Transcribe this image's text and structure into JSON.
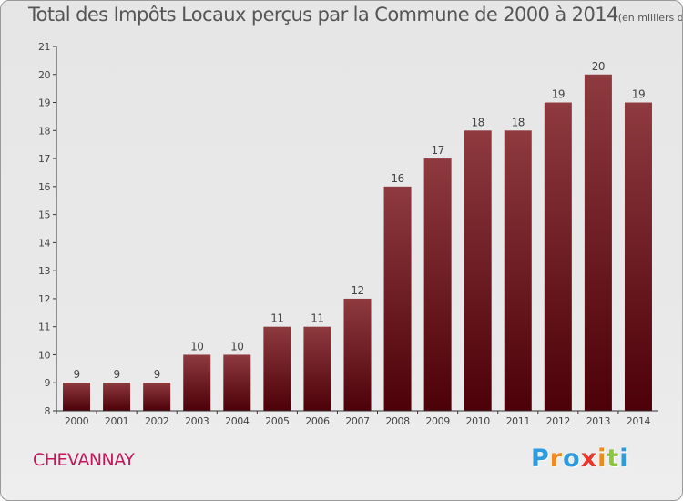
{
  "title": "Total des Impôts Locaux perçus par la Commune de 2000 à 2014",
  "unit": "(en milliers d'€)",
  "commune": "CHEVANNAY",
  "logo": {
    "letters": [
      "P",
      "r",
      "o",
      "x",
      "i",
      "t",
      "i"
    ],
    "colors": [
      "#2e9be0",
      "#f08a1c",
      "#2e9be0",
      "#e8372a",
      "#f08a1c",
      "#8cc63f",
      "#2e9be0"
    ]
  },
  "colors": {
    "bar_top": "#8e3a3f",
    "bar_bottom": "#4c0008",
    "axis": "#333333",
    "text": "#444444"
  },
  "chart_data": {
    "type": "bar",
    "categories": [
      "2000",
      "2001",
      "2002",
      "2003",
      "2004",
      "2005",
      "2006",
      "2007",
      "2008",
      "2009",
      "2010",
      "2011",
      "2012",
      "2013",
      "2014"
    ],
    "values": [
      9,
      9,
      9,
      10,
      10,
      11,
      11,
      12,
      16,
      17,
      18,
      18,
      19,
      20,
      19
    ],
    "ylim": [
      8,
      21
    ],
    "yticks": [
      8,
      9,
      10,
      11,
      12,
      13,
      14,
      15,
      16,
      17,
      18,
      19,
      20,
      21
    ],
    "grid": false,
    "data_labels": true
  }
}
